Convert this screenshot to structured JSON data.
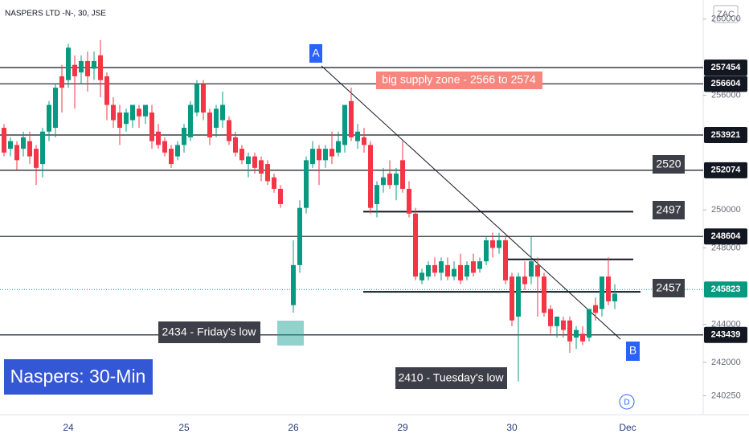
{
  "chart_data": {
    "type": "candlestick",
    "title": "NASPERS LTD -N-, 30, JSE",
    "unit": "ZAC",
    "up_color": "#089981",
    "down_color": "#f23645",
    "ylim": [
      239300,
      261000
    ],
    "yticks": [
      260000,
      256000,
      250000,
      248000,
      244000,
      242000,
      240250
    ],
    "levels": [
      257454,
      256604,
      253921,
      252074,
      248604,
      243439
    ],
    "last_price": 245823,
    "partial_levels": [
      249900,
      247400,
      245700
    ],
    "annotations": {
      "a": "A",
      "b": "B",
      "supply": "big supply zone - 2566 to 2574",
      "l2520": "2520",
      "l2497": "2497",
      "l2457": "2457",
      "friday": "2434 - Friday's low",
      "tuesday": "2410 - Tuesday's low",
      "label": "Naspers: 30-Min",
      "d": "D"
    },
    "categories": [
      null,
      null,
      null,
      null,
      null,
      null,
      null,
      null,
      null,
      null,
      "24",
      null,
      null,
      null,
      null,
      null,
      null,
      null,
      null,
      null,
      null,
      null,
      null,
      null,
      null,
      null,
      null,
      null,
      "25",
      null,
      null,
      null,
      null,
      null,
      null,
      null,
      null,
      null,
      null,
      null,
      null,
      null,
      null,
      null,
      null,
      "26",
      null,
      null,
      null,
      null,
      null,
      null,
      null,
      null,
      null,
      null,
      null,
      null,
      null,
      null,
      null,
      null,
      "29",
      null,
      null,
      null,
      null,
      null,
      null,
      null,
      null,
      null,
      null,
      null,
      null,
      null,
      null,
      null,
      null,
      "30",
      null,
      null,
      null,
      null,
      null,
      null,
      null,
      null,
      null,
      null,
      null,
      null,
      null,
      null,
      null,
      null,
      null,
      "Dec"
    ],
    "open": [
      254300,
      253200,
      253400,
      253200,
      253600,
      253200,
      252400,
      254100,
      254300,
      257000,
      256800,
      257600,
      257200,
      257800,
      257400,
      258100,
      257000,
      255500,
      255100,
      254500,
      254700,
      255300,
      254900,
      255100,
      254100,
      253600,
      253200,
      252800,
      253400,
      253800,
      255100,
      256600,
      255100,
      254300,
      254700,
      254700,
      253800,
      253200,
      252400,
      252800,
      252600,
      252400,
      251700,
      251100,
      null,
      245000,
      247100,
      250100,
      252400,
      253200,
      252600,
      253200,
      253000,
      253400,
      255700,
      253600,
      253800,
      253400,
      250300,
      251300,
      251900,
      251300,
      252600,
      251100,
      249800,
      246300,
      246500,
      247100,
      246700,
      247100,
      246500,
      247100,
      246500,
      247300,
      246900,
      247300,
      248400,
      248000,
      248400,
      246500,
      244400,
      246500,
      246500,
      247100,
      246500,
      244800,
      243900,
      244200,
      244200,
      243300,
      243500,
      243300,
      245000,
      244800,
      246500,
      245200,
      null,
      null
    ],
    "high": [
      254500,
      253800,
      253600,
      254100,
      254100,
      253400,
      254300,
      255700,
      256600,
      257600,
      258700,
      258100,
      258100,
      258300,
      258300,
      258900,
      257200,
      255900,
      255500,
      255300,
      255500,
      255500,
      255500,
      255500,
      254500,
      253800,
      253400,
      253600,
      254500,
      255700,
      256800,
      256800,
      255300,
      255500,
      256200,
      254900,
      254100,
      253400,
      253000,
      253000,
      252800,
      252600,
      251900,
      251300,
      null,
      248400,
      250500,
      252800,
      253600,
      253400,
      253400,
      254100,
      254100,
      255500,
      256400,
      254500,
      254300,
      253600,
      251500,
      252200,
      252600,
      252200,
      253600,
      251500,
      250100,
      246900,
      247300,
      247500,
      247500,
      247500,
      247300,
      247700,
      247300,
      247700,
      247500,
      248600,
      248800,
      248800,
      248600,
      246700,
      246700,
      247300,
      248600,
      247500,
      246700,
      245000,
      244400,
      244400,
      244400,
      243900,
      243900,
      244800,
      245400,
      246500,
      247500,
      246100,
      null,
      null
    ],
    "low": [
      252800,
      252800,
      252100,
      252800,
      252400,
      251300,
      251700,
      253600,
      253800,
      255100,
      256400,
      255300,
      256600,
      256200,
      256800,
      255900,
      254700,
      254300,
      253400,
      254100,
      254300,
      254300,
      254500,
      253200,
      253200,
      252800,
      252200,
      252600,
      253000,
      253600,
      254900,
      254700,
      253400,
      253800,
      254300,
      253400,
      252800,
      252400,
      251700,
      251900,
      251500,
      251300,
      250900,
      250100,
      null,
      244600,
      246700,
      249800,
      252200,
      251300,
      252200,
      252400,
      252800,
      253000,
      253600,
      253200,
      253000,
      249800,
      249600,
      250900,
      251100,
      250500,
      250900,
      249600,
      246300,
      246100,
      246300,
      246500,
      246300,
      246300,
      246300,
      246100,
      246300,
      246500,
      246700,
      247100,
      247500,
      247700,
      246100,
      243900,
      241000,
      245800,
      246100,
      244400,
      244400,
      243500,
      243300,
      243300,
      242500,
      242700,
      242900,
      243100,
      244200,
      244400,
      245000,
      244800,
      null,
      null
    ],
    "close": [
      253000,
      253600,
      252600,
      253800,
      252800,
      252200,
      254100,
      255500,
      256400,
      256400,
      258500,
      257000,
      257800,
      257000,
      257800,
      256800,
      255500,
      254700,
      254300,
      255100,
      255500,
      254900,
      255500,
      253600,
      253400,
      253000,
      252400,
      253400,
      254300,
      255500,
      256600,
      255100,
      253800,
      255300,
      255500,
      253600,
      253000,
      252600,
      252800,
      252200,
      251900,
      251500,
      251100,
      250300,
      null,
      247100,
      250100,
      252600,
      253200,
      252600,
      253200,
      252800,
      253600,
      255500,
      253800,
      254100,
      253400,
      250100,
      251300,
      251700,
      251300,
      251900,
      251100,
      249800,
      246500,
      246700,
      247100,
      246700,
      247300,
      246500,
      246900,
      246300,
      247100,
      246700,
      247300,
      248400,
      248000,
      248400,
      246300,
      244200,
      246500,
      246100,
      247300,
      246500,
      244600,
      243900,
      244400,
      243700,
      243100,
      243700,
      243100,
      244800,
      244600,
      246500,
      245200,
      245600,
      null,
      null
    ]
  }
}
